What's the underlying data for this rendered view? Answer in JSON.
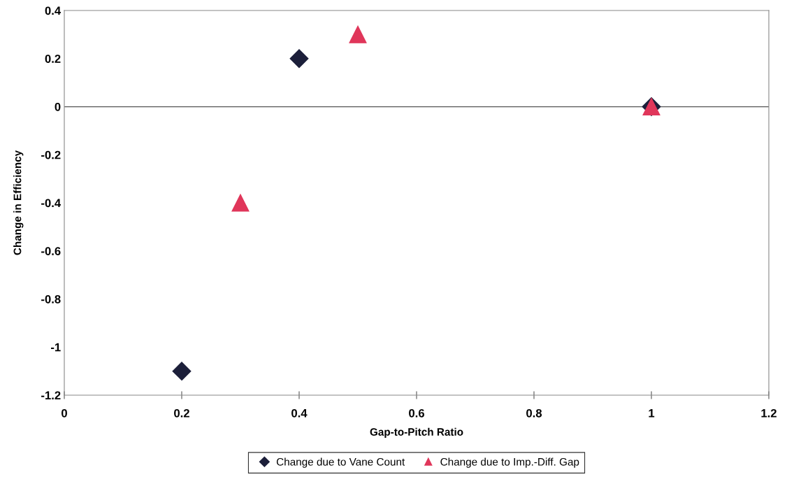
{
  "chart_data": {
    "type": "scatter",
    "xlabel": "Gap-to-Pitch Ratio",
    "ylabel": "Change in Efficiency",
    "xlim": [
      0,
      1.2
    ],
    "xticks": [
      0,
      0.2,
      0.4,
      0.6,
      0.8,
      1,
      1.2
    ],
    "ylim": [
      -1.2,
      0.4
    ],
    "yticks": [
      -1.2,
      -1,
      -0.8,
      -0.6,
      -0.4,
      -0.2,
      0,
      0.2,
      0.4
    ],
    "grid": false,
    "legend": "bottom",
    "ref_lines": [
      {
        "axis": "y",
        "value": 0,
        "color": "#555555"
      }
    ],
    "series": [
      {
        "name": "Change due to Vane Count",
        "color": "#1c1f3a",
        "marker": "diamond",
        "x": [
          0.2,
          0.4,
          1
        ],
        "values": [
          -1.1,
          0.2,
          0
        ]
      },
      {
        "name": "Change due to Imp.-Diff. Gap",
        "color": "#e0365a",
        "marker": "triangle",
        "x": [
          0.3,
          0.5,
          1
        ],
        "values": [
          -0.4,
          0.3,
          0
        ]
      }
    ]
  }
}
